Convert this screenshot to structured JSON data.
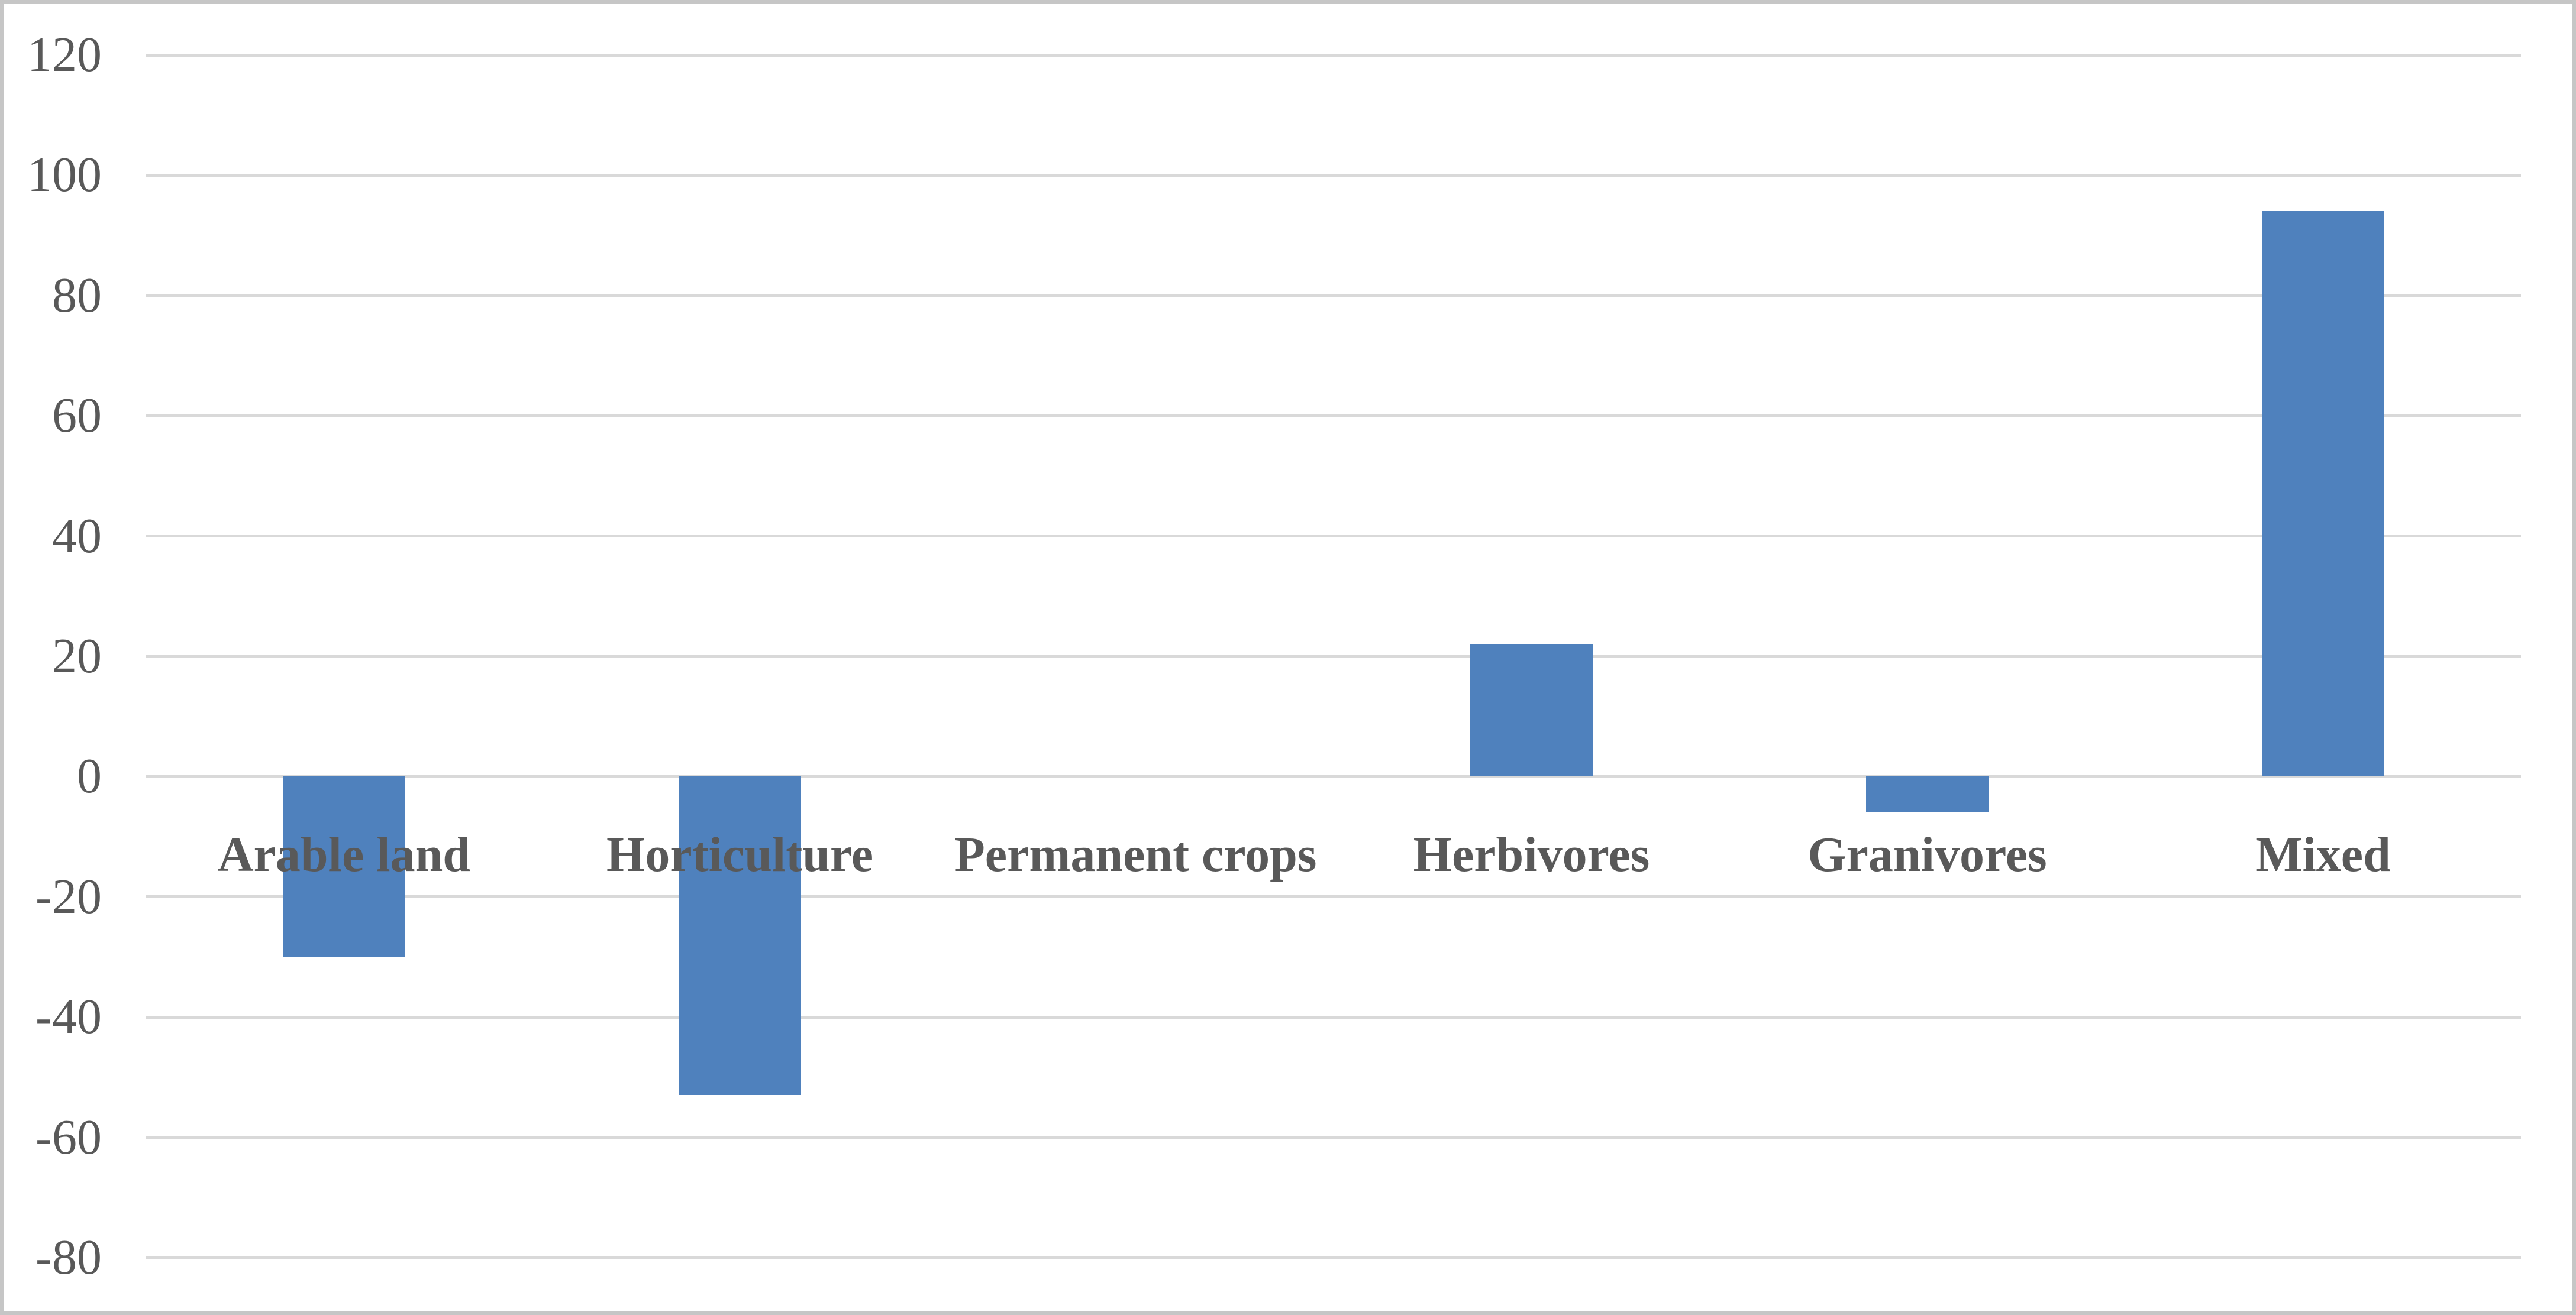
{
  "chart_data": {
    "type": "bar",
    "title": "",
    "xlabel": "",
    "ylabel": "",
    "categories": [
      "Arable land",
      "Horticulture",
      "Permanent crops",
      "Herbivores",
      "Granivores",
      "Mixed"
    ],
    "values": [
      -30,
      -53,
      0,
      22,
      -6,
      94
    ],
    "yticks": [
      120,
      100,
      80,
      60,
      40,
      20,
      0,
      -20,
      -40,
      -60,
      -80
    ],
    "ylim": [
      -80,
      120
    ],
    "grid": "horizontal",
    "legend": "none",
    "bar_color": "#4F81BD",
    "gridline_color": "#D9D9D9",
    "text_color": "#595959",
    "frame_color": "#C6C6C6",
    "background_color": "#FFFFFF"
  }
}
